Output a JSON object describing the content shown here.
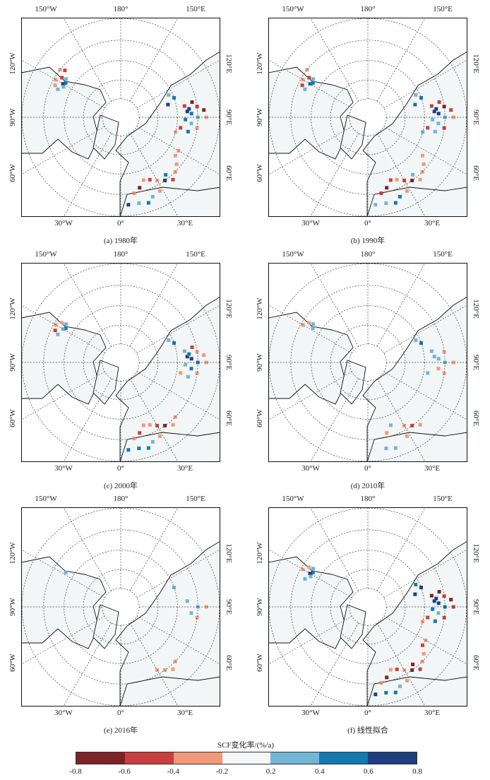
{
  "chart_data": {
    "type": "map",
    "projection": "north polar stereographic",
    "lon_labels": {
      "top": [
        "150°W",
        "180°",
        "150°E"
      ],
      "left": [
        "120°W",
        "90°W",
        "60°W"
      ],
      "right": [
        "120°E",
        "90°E",
        "60°E"
      ],
      "bottom": [
        "30°W",
        "0°",
        "30°E"
      ]
    },
    "latitude_circles": [
      80,
      70,
      60,
      50,
      40
    ],
    "meridians_step": 30,
    "colorbar": {
      "title": "SCF变化率/(%/a)",
      "ticks": [
        "-0.8",
        "-0.6",
        "-0.4",
        "-0.2",
        "0.2",
        "0.4",
        "0.6",
        "0.8"
      ],
      "bins": [
        {
          "range": [
            -0.8,
            -0.6
          ],
          "color": "#7d2227"
        },
        {
          "range": [
            -0.6,
            -0.4
          ],
          "color": "#c8403f"
        },
        {
          "range": [
            -0.4,
            -0.2
          ],
          "color": "#f19a7b"
        },
        {
          "range": [
            -0.2,
            0.2
          ],
          "color": "#f3f7f7"
        },
        {
          "range": [
            0.2,
            0.4
          ],
          "color": "#72b5d5"
        },
        {
          "range": [
            0.4,
            0.6
          ],
          "color": "#1479b0"
        },
        {
          "range": [
            0.6,
            0.8
          ],
          "color": "#1f3f7e"
        }
      ]
    },
    "panels": [
      {
        "caption": "(a) 1980年",
        "cells": [
          [
            -125,
            55,
            0.3
          ],
          [
            -122,
            56,
            0.5
          ],
          [
            -120,
            55,
            0.7
          ],
          [
            -118,
            56,
            0.3
          ],
          [
            -124,
            53,
            -0.5
          ],
          [
            -128,
            50,
            -0.3
          ],
          [
            -120,
            51,
            -0.3
          ],
          [
            -116,
            52,
            -0.3
          ],
          [
            -130,
            52,
            -0.5
          ],
          [
            -114,
            54,
            0.3
          ],
          [
            95,
            55,
            0.7
          ],
          [
            97,
            54,
            0.7
          ],
          [
            93,
            53,
            0.5
          ],
          [
            100,
            56,
            -0.5
          ],
          [
            102,
            52,
            -0.7
          ],
          [
            98,
            50,
            -0.5
          ],
          [
            90,
            50,
            0.3
          ],
          [
            88,
            56,
            0.5
          ],
          [
            85,
            53,
            0.3
          ],
          [
            80,
            58,
            -0.5
          ],
          [
            78,
            54,
            0.5
          ],
          [
            82,
            50,
            -0.3
          ],
          [
            90,
            46,
            -0.3
          ],
          [
            95,
            47,
            -0.7
          ],
          [
            75,
            60,
            -0.3
          ],
          [
            110,
            60,
            0.5
          ],
          [
            115,
            62,
            0.3
          ],
          [
            105,
            64,
            0.7
          ],
          [
            20,
            55,
            -0.3
          ],
          [
            25,
            54,
            -0.5
          ],
          [
            30,
            52,
            -0.3
          ],
          [
            15,
            52,
            -0.7
          ],
          [
            10,
            50,
            -0.3
          ],
          [
            35,
            50,
            0.7
          ],
          [
            40,
            48,
            -0.5
          ],
          [
            45,
            50,
            -0.3
          ],
          [
            50,
            52,
            -0.3
          ],
          [
            55,
            55,
            -0.3
          ],
          [
            60,
            55,
            -0.3
          ],
          [
            12,
            45,
            0.3
          ],
          [
            18,
            44,
            0.5
          ],
          [
            22,
            46,
            0.3
          ],
          [
            5,
            45,
            0.7
          ],
          [
            28,
            47,
            -0.3
          ],
          [
            38,
            52,
            0.5
          ]
        ]
      },
      {
        "caption": "(b) 1990年",
        "cells": [
          [
            -125,
            55,
            0.3
          ],
          [
            -122,
            56,
            0.5
          ],
          [
            -120,
            55,
            0.5
          ],
          [
            -124,
            53,
            -0.5
          ],
          [
            -128,
            50,
            -0.3
          ],
          [
            -120,
            51,
            -0.3
          ],
          [
            -116,
            52,
            -0.5
          ],
          [
            -114,
            54,
            0.3
          ],
          [
            95,
            55,
            0.7
          ],
          [
            97,
            54,
            0.7
          ],
          [
            93,
            53,
            0.7
          ],
          [
            100,
            56,
            -0.5
          ],
          [
            102,
            52,
            -0.5
          ],
          [
            98,
            50,
            -0.7
          ],
          [
            90,
            50,
            0.3
          ],
          [
            88,
            56,
            0.3
          ],
          [
            85,
            53,
            0.3
          ],
          [
            80,
            58,
            -0.5
          ],
          [
            78,
            54,
            0.3
          ],
          [
            82,
            50,
            -0.5
          ],
          [
            90,
            46,
            -0.3
          ],
          [
            95,
            47,
            -0.5
          ],
          [
            75,
            60,
            0.3
          ],
          [
            110,
            60,
            0.5
          ],
          [
            115,
            62,
            0.3
          ],
          [
            105,
            64,
            0.5
          ],
          [
            20,
            55,
            -0.5
          ],
          [
            25,
            54,
            -0.3
          ],
          [
            30,
            52,
            -0.5
          ],
          [
            15,
            52,
            -0.7
          ],
          [
            10,
            50,
            -0.5
          ],
          [
            35,
            50,
            -0.7
          ],
          [
            40,
            48,
            -0.3
          ],
          [
            45,
            50,
            -0.3
          ],
          [
            50,
            52,
            -0.3
          ],
          [
            55,
            55,
            -0.3
          ],
          [
            12,
            45,
            0.3
          ],
          [
            18,
            44,
            0.5
          ],
          [
            22,
            46,
            0.5
          ],
          [
            5,
            45,
            0.3
          ],
          [
            28,
            47,
            -0.3
          ],
          [
            38,
            52,
            0.3
          ]
        ]
      },
      {
        "caption": "(c) 2000年",
        "cells": [
          [
            -125,
            55,
            0.3
          ],
          [
            -122,
            56,
            0.5
          ],
          [
            -120,
            55,
            0.3
          ],
          [
            -124,
            53,
            -0.3
          ],
          [
            -120,
            51,
            -0.3
          ],
          [
            -116,
            52,
            -0.5
          ],
          [
            -114,
            54,
            0.3
          ],
          [
            95,
            55,
            0.7
          ],
          [
            97,
            54,
            0.5
          ],
          [
            93,
            53,
            0.7
          ],
          [
            100,
            56,
            0.3
          ],
          [
            102,
            52,
            -0.5
          ],
          [
            98,
            50,
            -0.3
          ],
          [
            90,
            50,
            0.5
          ],
          [
            88,
            56,
            0.3
          ],
          [
            85,
            53,
            0.5
          ],
          [
            80,
            58,
            -0.3
          ],
          [
            78,
            54,
            0.3
          ],
          [
            82,
            50,
            -0.3
          ],
          [
            90,
            46,
            -0.3
          ],
          [
            95,
            47,
            -0.3
          ],
          [
            110,
            60,
            0.5
          ],
          [
            115,
            62,
            0.3
          ],
          [
            20,
            55,
            -0.3
          ],
          [
            25,
            54,
            -0.3
          ],
          [
            30,
            52,
            -0.5
          ],
          [
            15,
            52,
            -0.5
          ],
          [
            10,
            50,
            -0.3
          ],
          [
            35,
            50,
            -0.7
          ],
          [
            40,
            48,
            -0.3
          ],
          [
            45,
            50,
            -0.3
          ],
          [
            12,
            45,
            0.5
          ],
          [
            18,
            44,
            0.5
          ],
          [
            22,
            46,
            0.3
          ],
          [
            5,
            45,
            0.5
          ],
          [
            28,
            47,
            -0.3
          ]
        ]
      },
      {
        "caption": "(d) 2010年",
        "cells": [
          [
            -125,
            55,
            0.3
          ],
          [
            -122,
            56,
            0.3
          ],
          [
            -124,
            53,
            -0.3
          ],
          [
            -120,
            51,
            -0.3
          ],
          [
            95,
            55,
            0.3
          ],
          [
            93,
            53,
            0.3
          ],
          [
            100,
            56,
            0.3
          ],
          [
            98,
            50,
            -0.3
          ],
          [
            90,
            50,
            0.3
          ],
          [
            85,
            53,
            -0.3
          ],
          [
            80,
            58,
            0.3
          ],
          [
            82,
            50,
            -0.3
          ],
          [
            90,
            46,
            -0.3
          ],
          [
            110,
            60,
            0.5
          ],
          [
            115,
            62,
            0.3
          ],
          [
            20,
            55,
            0.3
          ],
          [
            30,
            52,
            -0.3
          ],
          [
            15,
            52,
            -0.3
          ],
          [
            35,
            50,
            -0.5
          ],
          [
            40,
            48,
            -0.3
          ],
          [
            12,
            45,
            0.3
          ],
          [
            18,
            44,
            0.3
          ],
          [
            28,
            47,
            -0.3
          ]
        ]
      },
      {
        "caption": "(e) 2016年",
        "cells": [
          [
            -122,
            56,
            0.3
          ],
          [
            95,
            55,
            0.3
          ],
          [
            90,
            50,
            0.3
          ],
          [
            85,
            53,
            0.3
          ],
          [
            82,
            50,
            -0.3
          ],
          [
            90,
            46,
            -0.3
          ],
          [
            35,
            50,
            -0.3
          ],
          [
            40,
            48,
            -0.3
          ],
          [
            45,
            50,
            -0.3
          ],
          [
            30,
            52,
            -0.3
          ],
          [
            110,
            60,
            0.3
          ]
        ]
      },
      {
        "caption": "(f) 线性拟合",
        "cells": [
          [
            -125,
            55,
            0.3
          ],
          [
            -122,
            56,
            0.5
          ],
          [
            -120,
            55,
            0.7
          ],
          [
            -118,
            56,
            0.3
          ],
          [
            -124,
            53,
            -0.3
          ],
          [
            -120,
            51,
            -0.3
          ],
          [
            -114,
            54,
            0.3
          ],
          [
            95,
            55,
            0.7
          ],
          [
            97,
            54,
            0.7
          ],
          [
            93,
            53,
            0.7
          ],
          [
            100,
            56,
            -0.7
          ],
          [
            102,
            52,
            -0.7
          ],
          [
            98,
            50,
            -0.5
          ],
          [
            90,
            50,
            0.5
          ],
          [
            88,
            56,
            0.5
          ],
          [
            85,
            53,
            0.3
          ],
          [
            80,
            58,
            -0.5
          ],
          [
            78,
            54,
            0.5
          ],
          [
            82,
            50,
            -0.5
          ],
          [
            90,
            46,
            -0.5
          ],
          [
            95,
            47,
            -0.7
          ],
          [
            75,
            60,
            -0.3
          ],
          [
            110,
            60,
            0.7
          ],
          [
            115,
            62,
            0.5
          ],
          [
            105,
            64,
            0.7
          ],
          [
            20,
            55,
            -0.3
          ],
          [
            25,
            54,
            -0.5
          ],
          [
            30,
            52,
            -0.3
          ],
          [
            15,
            52,
            -0.7
          ],
          [
            10,
            50,
            -0.3
          ],
          [
            35,
            50,
            -0.7
          ],
          [
            40,
            48,
            -0.5
          ],
          [
            45,
            50,
            -0.3
          ],
          [
            50,
            52,
            -0.3
          ],
          [
            55,
            55,
            -0.5
          ],
          [
            60,
            55,
            -0.3
          ],
          [
            12,
            45,
            0.5
          ],
          [
            18,
            44,
            0.5
          ],
          [
            22,
            46,
            0.3
          ],
          [
            5,
            45,
            0.7
          ],
          [
            28,
            47,
            -0.3
          ],
          [
            38,
            52,
            -0.7
          ]
        ]
      }
    ]
  }
}
